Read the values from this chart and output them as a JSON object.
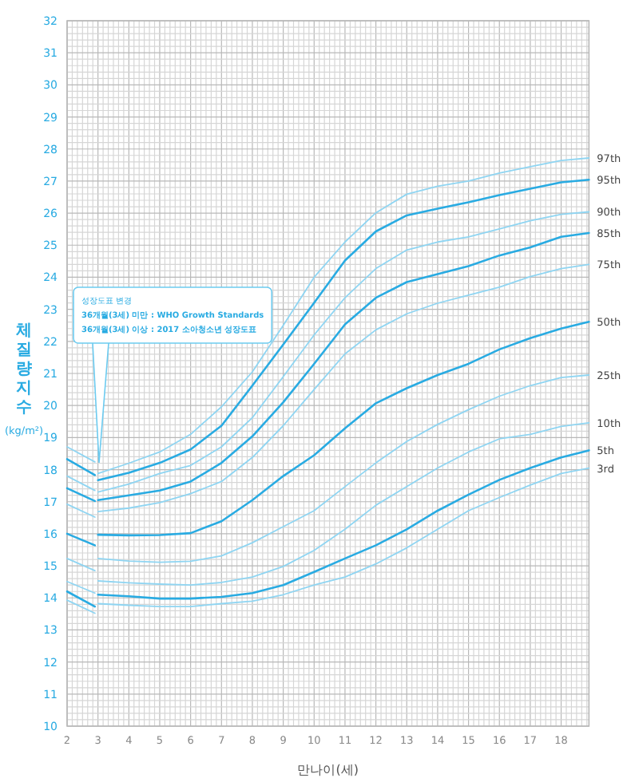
{
  "chart_data": {
    "type": "line",
    "xlabel": "만나이(세)",
    "ylabel": "체질량지수 (kg/m²)",
    "xlim": [
      2,
      18.9
    ],
    "ylim": [
      10,
      32
    ],
    "xticks": [
      2,
      3,
      4,
      5,
      6,
      7,
      8,
      9,
      10,
      11,
      12,
      13,
      14,
      15,
      16,
      17,
      18
    ],
    "yticks": [
      10,
      11,
      12,
      13,
      14,
      15,
      16,
      17,
      18,
      19,
      20,
      21,
      22,
      23,
      24,
      25,
      26,
      27,
      28,
      29,
      30,
      31,
      32
    ],
    "grid": true,
    "annotations": [
      "성장도표 변경\n36개월(3세) 미만 : WHO Growth Standards\n36개월(3세) 이상 : 2017 소아청소년 성장도표"
    ],
    "series": [
      {
        "color": "#8fd5f2",
        "x": [
          2,
          2.9
        ],
        "values": [
          18.71,
          18.24
        ]
      },
      {
        "color": "#29abe2",
        "x": [
          2,
          2.9
        ],
        "values": [
          18.33,
          17.83
        ]
      },
      {
        "color": "#8fd5f2",
        "x": [
          2,
          2.9
        ],
        "values": [
          17.8,
          17.35
        ]
      },
      {
        "color": "#29abe2",
        "x": [
          2,
          2.9
        ],
        "values": [
          17.42,
          17.02
        ]
      },
      {
        "color": "#8fd5f2",
        "x": [
          2,
          2.9
        ],
        "values": [
          16.92,
          16.52
        ]
      },
      {
        "color": "#29abe2",
        "x": [
          2,
          2.9
        ],
        "values": [
          16.0,
          15.64
        ]
      },
      {
        "color": "#8fd5f2",
        "x": [
          2,
          2.9
        ],
        "values": [
          15.23,
          14.85
        ]
      },
      {
        "color": "#8fd5f2",
        "x": [
          2,
          2.9
        ],
        "values": [
          14.51,
          14.15
        ]
      },
      {
        "color": "#29abe2",
        "x": [
          2,
          2.9
        ],
        "values": [
          14.2,
          13.73
        ]
      },
      {
        "color": "#8fd5f2",
        "x": [
          2,
          2.9
        ],
        "values": [
          13.93,
          13.52
        ]
      },
      {
        "name": "97th",
        "color": "#8fd5f2",
        "x": [
          3,
          4,
          5,
          6,
          7,
          8,
          9,
          10,
          11,
          12,
          13,
          14,
          15,
          16,
          17,
          18,
          18.9
        ],
        "values": [
          17.88,
          18.2,
          18.55,
          19.1,
          19.96,
          21.05,
          22.5,
          24.0,
          25.1,
          26.01,
          26.59,
          26.84,
          27.0,
          27.25,
          27.45,
          27.64,
          27.72
        ]
      },
      {
        "name": "95th",
        "color": "#29abe2",
        "x": [
          3,
          4,
          5,
          6,
          7,
          8,
          9,
          10,
          11,
          12,
          13,
          14,
          15,
          16,
          17,
          18,
          18.9
        ],
        "values": [
          17.67,
          17.9,
          18.21,
          18.63,
          19.37,
          20.62,
          21.9,
          23.2,
          24.52,
          25.43,
          25.93,
          26.14,
          26.34,
          26.56,
          26.76,
          26.96,
          27.04
        ]
      },
      {
        "name": "90th",
        "color": "#8fd5f2",
        "x": [
          3,
          4,
          5,
          6,
          7,
          8,
          9,
          10,
          11,
          12,
          13,
          14,
          15,
          16,
          17,
          18,
          18.9
        ],
        "values": [
          17.3,
          17.55,
          17.88,
          18.13,
          18.71,
          19.62,
          20.9,
          22.2,
          23.36,
          24.27,
          24.85,
          25.1,
          25.26,
          25.51,
          25.76,
          25.96,
          26.04
        ]
      },
      {
        "name": "85th",
        "color": "#29abe2",
        "x": [
          3,
          4,
          5,
          6,
          7,
          8,
          9,
          10,
          11,
          12,
          13,
          14,
          15,
          16,
          17,
          18,
          18.9
        ],
        "values": [
          17.05,
          17.2,
          17.35,
          17.63,
          18.21,
          19.04,
          20.1,
          21.3,
          22.53,
          23.36,
          23.85,
          24.1,
          24.35,
          24.68,
          24.93,
          25.26,
          25.38
        ]
      },
      {
        "name": "75th",
        "color": "#8fd5f2",
        "x": [
          3,
          4,
          5,
          6,
          7,
          8,
          9,
          10,
          11,
          12,
          13,
          14,
          15,
          16,
          17,
          18,
          18.9
        ],
        "values": [
          16.69,
          16.8,
          16.97,
          17.25,
          17.63,
          18.38,
          19.37,
          20.5,
          21.61,
          22.36,
          22.86,
          23.19,
          23.44,
          23.69,
          24.02,
          24.27,
          24.4
        ]
      },
      {
        "name": "50th",
        "color": "#29abe2",
        "x": [
          3,
          4,
          5,
          6,
          7,
          8,
          9,
          10,
          11,
          12,
          13,
          14,
          15,
          16,
          17,
          18,
          18.9
        ],
        "values": [
          15.97,
          15.95,
          15.96,
          16.02,
          16.39,
          17.05,
          17.8,
          18.45,
          19.29,
          20.07,
          20.54,
          20.95,
          21.3,
          21.75,
          22.1,
          22.4,
          22.61
        ]
      },
      {
        "name": "25th",
        "color": "#8fd5f2",
        "x": [
          3,
          4,
          5,
          6,
          7,
          8,
          9,
          10,
          11,
          12,
          13,
          14,
          15,
          16,
          17,
          18,
          18.9
        ],
        "values": [
          15.23,
          15.15,
          15.11,
          15.14,
          15.31,
          15.72,
          16.22,
          16.72,
          17.47,
          18.21,
          18.88,
          19.41,
          19.87,
          20.29,
          20.62,
          20.87,
          20.95
        ]
      },
      {
        "name": "10th",
        "color": "#8fd5f2",
        "x": [
          3,
          4,
          5,
          6,
          7,
          8,
          9,
          10,
          11,
          12,
          13,
          14,
          15,
          16,
          17,
          18,
          18.9
        ],
        "values": [
          14.53,
          14.47,
          14.43,
          14.4,
          14.48,
          14.65,
          14.98,
          15.48,
          16.14,
          16.89,
          17.47,
          18.05,
          18.55,
          18.96,
          19.1,
          19.35,
          19.46
        ]
      },
      {
        "name": "5th",
        "color": "#29abe2",
        "x": [
          3,
          4,
          5,
          6,
          7,
          8,
          9,
          10,
          11,
          12,
          13,
          14,
          15,
          16,
          17,
          18,
          18.9
        ],
        "values": [
          14.1,
          14.05,
          13.98,
          13.98,
          14.03,
          14.15,
          14.4,
          14.81,
          15.23,
          15.64,
          16.14,
          16.72,
          17.22,
          17.68,
          18.05,
          18.38,
          18.6
        ]
      },
      {
        "name": "3rd",
        "color": "#8fd5f2",
        "x": [
          3,
          4,
          5,
          6,
          7,
          8,
          9,
          10,
          11,
          12,
          13,
          14,
          15,
          16,
          17,
          18,
          18.9
        ],
        "values": [
          13.82,
          13.77,
          13.73,
          13.73,
          13.82,
          13.9,
          14.1,
          14.4,
          14.65,
          15.06,
          15.56,
          16.14,
          16.72,
          17.13,
          17.52,
          17.88,
          18.05
        ]
      }
    ]
  }
}
